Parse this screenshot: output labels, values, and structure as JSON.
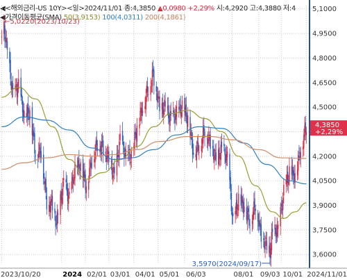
{
  "header": {
    "instrument": "<해외금리-US 10Y>",
    "period": "<일>",
    "date": "2024/11/01",
    "close_label": "종:4,3850",
    "change_up": "▲0,0980",
    "change_pct": "+2,29%",
    "open_label": "시:4,2920",
    "high_label": "고:4,3880",
    "low_label": "저:4",
    "ma_title": "가격이동평균(SMA)",
    "ma50_label": "50(3,9153)",
    "ma100_label": "100(4,0311)",
    "ma200_label": "200(4,1861)"
  },
  "colors": {
    "up": "#d7263d",
    "down": "#2a5fbf",
    "ma50": "#9a9c32",
    "ma100": "#2f7fc4",
    "ma200": "#d08c67",
    "grid": "#c8c8c8",
    "last_price_box": "#e0314b"
  },
  "chart_data": {
    "type": "candlestick",
    "title": "",
    "x_ticks": [
      "2023/10/20",
      "2024",
      "02/01",
      "03/01",
      "04/01",
      "05/01",
      "06/03",
      "08/01",
      "09/03",
      "10/01",
      "2024/11/01"
    ],
    "y_ticks": [
      "5,1000",
      "4,9500",
      "4,8000",
      "4,6500",
      "4,5000",
      "4,3500",
      "4,2000",
      "4,0500",
      "3,9000",
      "3,7500",
      "3,6000"
    ],
    "ylim": [
      3.55,
      5.12
    ],
    "xlim": [
      "2023-10-18",
      "2024-11-05"
    ],
    "annotations": {
      "high": {
        "label": "5,0220(2023/10/23)",
        "date": "2023-10-23",
        "value": 5.022
      },
      "low": {
        "label": "3,5970(2024/09/17)",
        "date": "2024-09-17",
        "value": 3.597
      }
    },
    "last_price": {
      "value": "4,3850",
      "change": "+2,29%"
    },
    "close_series": [
      [
        "2023-10-20",
        4.95
      ],
      [
        "2023-10-23",
        4.99
      ],
      [
        "2023-10-27",
        4.84
      ],
      [
        "2023-11-03",
        4.57
      ],
      [
        "2023-11-10",
        4.63
      ],
      [
        "2023-11-17",
        4.44
      ],
      [
        "2023-11-24",
        4.47
      ],
      [
        "2023-12-01",
        4.22
      ],
      [
        "2023-12-08",
        4.23
      ],
      [
        "2023-12-15",
        3.92
      ],
      [
        "2023-12-22",
        3.9
      ],
      [
        "2023-12-27",
        3.79
      ],
      [
        "2024-01-05",
        4.04
      ],
      [
        "2024-01-12",
        3.94
      ],
      [
        "2024-01-19",
        4.12
      ],
      [
        "2024-01-26",
        4.14
      ],
      [
        "2024-02-02",
        4.02
      ],
      [
        "2024-02-09",
        4.18
      ],
      [
        "2024-02-16",
        4.28
      ],
      [
        "2024-02-23",
        4.25
      ],
      [
        "2024-03-01",
        4.18
      ],
      [
        "2024-03-08",
        4.08
      ],
      [
        "2024-03-15",
        4.3
      ],
      [
        "2024-03-22",
        4.2
      ],
      [
        "2024-03-29",
        4.2
      ],
      [
        "2024-04-05",
        4.38
      ],
      [
        "2024-04-12",
        4.5
      ],
      [
        "2024-04-19",
        4.62
      ],
      [
        "2024-04-25",
        4.7
      ],
      [
        "2024-05-03",
        4.5
      ],
      [
        "2024-05-10",
        4.5
      ],
      [
        "2024-05-17",
        4.42
      ],
      [
        "2024-05-24",
        4.46
      ],
      [
        "2024-05-31",
        4.5
      ],
      [
        "2024-06-07",
        4.43
      ],
      [
        "2024-06-14",
        4.22
      ],
      [
        "2024-06-21",
        4.26
      ],
      [
        "2024-06-28",
        4.36
      ],
      [
        "2024-07-05",
        4.28
      ],
      [
        "2024-07-12",
        4.18
      ],
      [
        "2024-07-19",
        4.24
      ],
      [
        "2024-07-26",
        4.19
      ],
      [
        "2024-08-02",
        3.79
      ],
      [
        "2024-08-09",
        3.94
      ],
      [
        "2024-08-16",
        3.89
      ],
      [
        "2024-08-23",
        3.8
      ],
      [
        "2024-08-30",
        3.91
      ],
      [
        "2024-09-06",
        3.72
      ],
      [
        "2024-09-13",
        3.65
      ],
      [
        "2024-09-17",
        3.62
      ],
      [
        "2024-09-20",
        3.73
      ],
      [
        "2024-09-27",
        3.75
      ],
      [
        "2024-10-04",
        3.98
      ],
      [
        "2024-10-11",
        4.1
      ],
      [
        "2024-10-18",
        4.08
      ],
      [
        "2024-10-25",
        4.24
      ],
      [
        "2024-11-01",
        4.385
      ]
    ],
    "series": [
      {
        "name": "50(3,9153)",
        "values": [
          [
            "2023-10-20",
            4.56
          ],
          [
            "2023-11-10",
            4.62
          ],
          [
            "2023-12-01",
            4.55
          ],
          [
            "2023-12-22",
            4.38
          ],
          [
            "2024-01-12",
            4.18
          ],
          [
            "2024-02-02",
            4.06
          ],
          [
            "2024-02-23",
            4.1
          ],
          [
            "2024-03-15",
            4.18
          ],
          [
            "2024-04-05",
            4.26
          ],
          [
            "2024-04-26",
            4.38
          ],
          [
            "2024-05-17",
            4.46
          ],
          [
            "2024-06-07",
            4.48
          ],
          [
            "2024-06-28",
            4.43
          ],
          [
            "2024-07-19",
            4.35
          ],
          [
            "2024-08-09",
            4.2
          ],
          [
            "2024-08-30",
            4.02
          ],
          [
            "2024-09-20",
            3.86
          ],
          [
            "2024-10-04",
            3.82
          ],
          [
            "2024-10-18",
            3.86
          ],
          [
            "2024-11-01",
            3.915
          ]
        ]
      },
      {
        "name": "100(4,0311)",
        "values": [
          [
            "2023-10-20",
            4.38
          ],
          [
            "2023-11-17",
            4.44
          ],
          [
            "2023-12-15",
            4.42
          ],
          [
            "2024-01-12",
            4.36
          ],
          [
            "2024-02-09",
            4.25
          ],
          [
            "2024-03-08",
            4.18
          ],
          [
            "2024-03-29",
            4.19
          ],
          [
            "2024-04-26",
            4.24
          ],
          [
            "2024-05-24",
            4.33
          ],
          [
            "2024-06-21",
            4.38
          ],
          [
            "2024-07-19",
            4.37
          ],
          [
            "2024-08-16",
            4.28
          ],
          [
            "2024-09-13",
            4.15
          ],
          [
            "2024-10-11",
            4.05
          ],
          [
            "2024-11-01",
            4.031
          ]
        ]
      },
      {
        "name": "200(4,1861)",
        "values": [
          [
            "2023-10-20",
            4.12
          ],
          [
            "2023-11-17",
            4.16
          ],
          [
            "2023-12-15",
            4.19
          ],
          [
            "2024-01-12",
            4.21
          ],
          [
            "2024-02-09",
            4.2
          ],
          [
            "2024-03-08",
            4.21
          ],
          [
            "2024-04-05",
            4.24
          ],
          [
            "2024-05-03",
            4.29
          ],
          [
            "2024-06-07",
            4.32
          ],
          [
            "2024-07-05",
            4.32
          ],
          [
            "2024-08-02",
            4.3
          ],
          [
            "2024-09-03",
            4.24
          ],
          [
            "2024-10-01",
            4.19
          ],
          [
            "2024-11-01",
            4.186
          ]
        ]
      }
    ]
  }
}
